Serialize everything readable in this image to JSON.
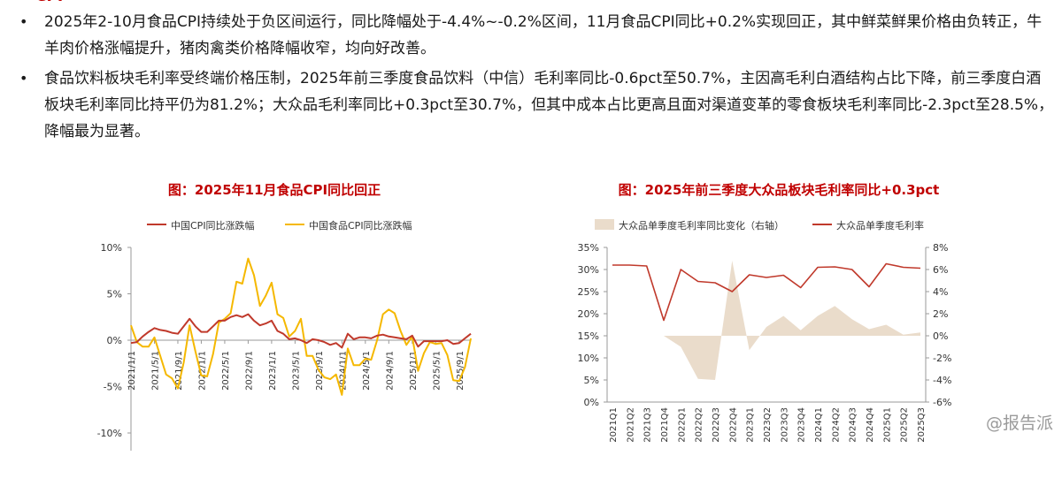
{
  "bullets": [
    {
      "text": "2025年2-10月食品CPI持续处于负区间运行，同比降幅处于-4.4%~-0.2%区间，11月食品CPI同比+0.2%实现回正，其中鲜菜鲜果价格由负转正，牛羊肉价格涨幅提升，猪肉禽类价格降幅收窄，均向好改善。"
    },
    {
      "text": "食品饮料板块毛利率受终端价格压制，2025年前三季度食品饮料（中信）毛利率同比-0.6pct至50.7%，主因高毛利白酒结构占比下降，前三季度白酒板块毛利率同比持平仍为81.2%；大众品毛利率同比+0.3pct至30.7%，但其中成本占比更高且面对渠道变革的零食板块毛利率同比-2.3pct至28.5%，降幅最为显著。"
    }
  ],
  "colors": {
    "red": "#c00000",
    "line_red": "#c0392b",
    "yellow": "#f5b800",
    "area": "#eadccb"
  },
  "watermark": "@报告派",
  "chart_data": [
    {
      "type": "line",
      "title": "图：2025年11月食品CPI同比回正",
      "legend_position": "top",
      "ylim": [
        -10,
        10
      ],
      "y_ticks": [
        "10%",
        "5%",
        "0%",
        "-5%",
        "-10%"
      ],
      "x_ticks": [
        "2021/1/1",
        "2021/5/1",
        "2021/9/1",
        "2022/1/1",
        "2022/5/1",
        "2022/9/1",
        "2023/1/1",
        "2023/5/1",
        "2023/9/1",
        "2024/1/1",
        "2024/5/1",
        "2024/9/1",
        "2025/1/1",
        "2025/5/1",
        "2025/9/1"
      ],
      "x_start": "2021-01",
      "series": [
        {
          "name": "中国CPI同比涨跌幅",
          "color": "#c0392b",
          "values": [
            -0.3,
            -0.2,
            0.4,
            0.9,
            1.3,
            1.1,
            1.0,
            0.8,
            0.7,
            1.5,
            2.3,
            1.5,
            0.9,
            0.9,
            1.5,
            2.1,
            2.1,
            2.5,
            2.7,
            2.5,
            2.8,
            2.1,
            1.6,
            1.8,
            2.1,
            1.0,
            0.7,
            0.1,
            0.2,
            0.0,
            -0.3,
            0.1,
            0.0,
            -0.2,
            -0.5,
            -0.3,
            -0.8,
            0.7,
            0.1,
            0.3,
            0.3,
            0.2,
            0.5,
            0.6,
            0.4,
            0.3,
            0.2,
            0.1,
            0.5,
            -0.7,
            -0.1,
            -0.1,
            -0.1,
            -0.1,
            0.0,
            -0.4,
            -0.3,
            0.2,
            0.7
          ]
        },
        {
          "name": "中国食品CPI同比涨跌幅",
          "color": "#f5b800",
          "values": [
            1.6,
            -0.2,
            -0.7,
            -0.7,
            0.3,
            -1.7,
            -3.7,
            -4.1,
            -5.2,
            -2.4,
            1.6,
            -1.2,
            -3.8,
            -3.9,
            -1.5,
            1.9,
            2.3,
            2.9,
            6.3,
            6.1,
            8.8,
            7.0,
            3.7,
            4.8,
            6.2,
            2.8,
            2.4,
            0.4,
            1.0,
            2.3,
            -1.7,
            -1.7,
            -3.2,
            -4.0,
            -4.2,
            -3.7,
            -5.9,
            -0.9,
            -2.7,
            -2.7,
            -2.0,
            -2.1,
            0.0,
            2.8,
            3.3,
            2.9,
            1.0,
            -0.5,
            0.4,
            -3.3,
            -1.4,
            -0.2,
            -0.4,
            -0.3,
            -1.6,
            -4.3,
            -4.4,
            -2.9,
            0.2
          ]
        }
      ]
    },
    {
      "type": "line",
      "title": "图：2025年前三季度大众品板块毛利率同比+0.3pct",
      "legend_position": "top",
      "ylim": [
        0,
        35
      ],
      "ylim_right": [
        -6,
        8
      ],
      "y_ticks": [
        "35%",
        "30%",
        "25%",
        "20%",
        "15%",
        "10%",
        "5%",
        "0%"
      ],
      "y_ticks_right": [
        "8%",
        "6%",
        "4%",
        "2%",
        "0%",
        "-2%",
        "-4%",
        "-6%"
      ],
      "categories": [
        "2021Q1",
        "2021Q2",
        "2021Q3",
        "2021Q4",
        "2022Q1",
        "2022Q2",
        "2022Q3",
        "2022Q4",
        "2023Q1",
        "2023Q2",
        "2023Q3",
        "2023Q4",
        "2024Q1",
        "2024Q2",
        "2024Q3",
        "2024Q4",
        "2025Q1",
        "2025Q2",
        "2025Q3"
      ],
      "series": [
        {
          "name": "大众品单季度毛利率同比变化（右轴）",
          "type": "area",
          "axis": "right",
          "color": "#eadccb",
          "values": [
            0.0,
            0.0,
            0.0,
            0.0,
            -1.0,
            -3.9,
            -4.0,
            6.8,
            -1.3,
            0.8,
            1.8,
            0.5,
            1.8,
            2.7,
            1.5,
            0.6,
            1.0,
            0.1,
            0.3
          ]
        },
        {
          "name": "大众品单季度毛利率",
          "type": "line",
          "axis": "left",
          "color": "#c0392b",
          "values": [
            31.0,
            31.0,
            30.8,
            18.5,
            30.0,
            27.3,
            27.0,
            25.0,
            28.8,
            28.2,
            28.7,
            25.9,
            30.5,
            30.6,
            30.0,
            26.1,
            31.3,
            30.5,
            30.3
          ]
        }
      ]
    }
  ]
}
